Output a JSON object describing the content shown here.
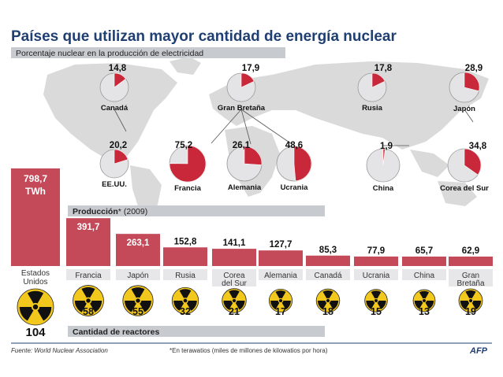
{
  "chart_data": [
    {
      "type": "pie",
      "title": "Países que utilizan mayor cantidad de energía nuclear",
      "subtitle": "Porcentaje nuclear en la producción de electricidad",
      "unit": "%",
      "countries": [
        {
          "name": "Canadá",
          "value": "14,8",
          "pct": 14.8
        },
        {
          "name": "Gran Bretaña",
          "value": "17,9",
          "pct": 17.9
        },
        {
          "name": "Rusia",
          "value": "17,8",
          "pct": 17.8
        },
        {
          "name": "Japón",
          "value": "28,9",
          "pct": 28.9
        },
        {
          "name": "EE.UU.",
          "value": "20,2",
          "pct": 20.2
        },
        {
          "name": "Francia",
          "value": "75,2",
          "pct": 75.2
        },
        {
          "name": "Alemania",
          "value": "26,1",
          "pct": 26.1
        },
        {
          "name": "Ucrania",
          "value": "48,6",
          "pct": 48.6
        },
        {
          "name": "China",
          "value": "1,9",
          "pct": 1.9
        },
        {
          "name": "Corea del Sur",
          "value": "34,8",
          "pct": 34.8
        }
      ]
    },
    {
      "type": "bar",
      "title": "Producción",
      "title_mark": "*",
      "title_year": "(2009)",
      "unit_label": "TWh",
      "categories": [
        "Estados Unidos",
        "Francia",
        "Japón",
        "Rusia",
        "Corea del Sur",
        "Alemania",
        "Canadá",
        "Ucrania",
        "China",
        "Gran Bretaña"
      ],
      "category_lines": [
        [
          "Estados",
          "Unidos"
        ],
        [
          "Francia"
        ],
        [
          "Japón"
        ],
        [
          "Rusia"
        ],
        [
          "Corea",
          "del Sur"
        ],
        [
          "Alemania"
        ],
        [
          "Canadá"
        ],
        [
          "Ucrania"
        ],
        [
          "China"
        ],
        [
          "Gran",
          "Bretaña"
        ]
      ],
      "values": [
        798.7,
        391.7,
        263.1,
        152.8,
        141.1,
        127.7,
        85.3,
        77.9,
        65.7,
        62.9
      ],
      "value_labels": [
        "798,7",
        "391,7",
        "263,1",
        "152,8",
        "141,1",
        "127,7",
        "85,3",
        "77,9",
        "65,7",
        "62,9"
      ]
    },
    {
      "type": "table",
      "title": "Cantidad de reactores",
      "values": [
        104,
        58,
        55,
        32,
        21,
        17,
        18,
        15,
        13,
        19
      ]
    }
  ],
  "footer": {
    "source": "Fuente: World Nuclear Association",
    "note": "*En terawatios  (miles de millones de kilowatios por hora)",
    "brand": "AFP"
  },
  "colors": {
    "accent": "#c8283a",
    "bar": "#c44a5a",
    "title": "#1f3f72",
    "band": "#c7cbd0",
    "pie_bg": "#e4e4e6",
    "map": "#d9d9d9"
  }
}
